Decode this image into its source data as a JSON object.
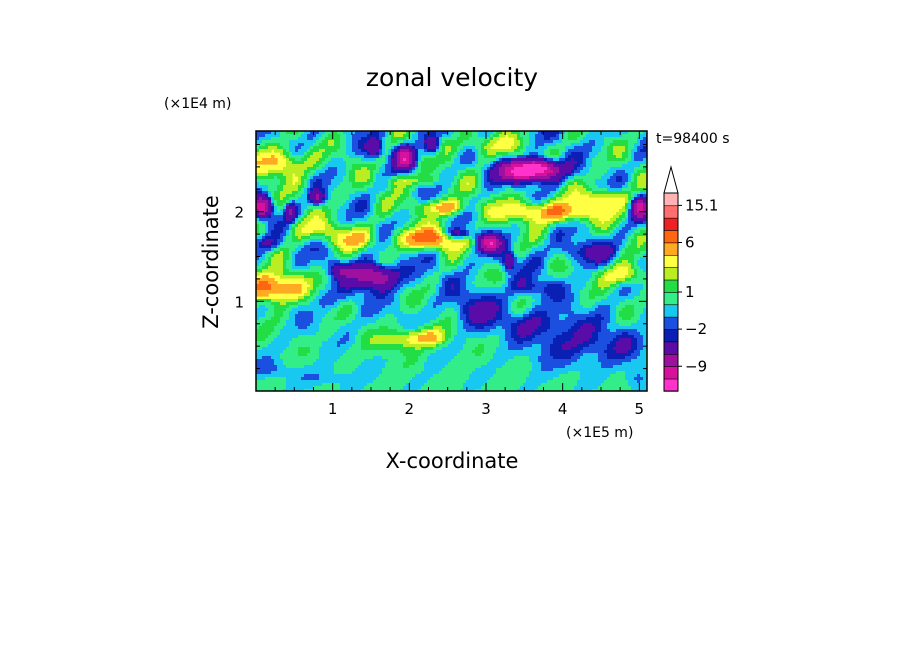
{
  "chart_data": {
    "type": "heatmap",
    "title": "zonal velocity",
    "xlabel": "X-coordinate",
    "ylabel": "Z-coordinate",
    "x_unit": "(×1E5 m)",
    "y_unit": "(×1E4 m)",
    "time_label": "t=98400 s",
    "xlim": [
      0,
      5.1
    ],
    "ylim": [
      0,
      2.9
    ],
    "x_ticks": [
      1,
      2,
      3,
      4,
      5
    ],
    "y_ticks": [
      1,
      2
    ],
    "colorbar": {
      "labels": [
        "15.1",
        "6",
        "1",
        "−2",
        "−9"
      ],
      "label_values": [
        15.1,
        6,
        1,
        -2,
        -9
      ],
      "levels": [
        -15,
        -12,
        -9,
        -6,
        -3,
        -2,
        -1,
        0,
        1,
        2,
        3,
        4.5,
        6,
        9,
        12,
        15.1
      ],
      "colors": [
        "#ff33cc",
        "#d6119c",
        "#a0109f",
        "#5a0ca8",
        "#0a1fb3",
        "#1a4fe0",
        "#18c8f0",
        "#33ee88",
        "#22dd44",
        "#bbee22",
        "#ffff44",
        "#ffaa22",
        "#ff6611",
        "#ee2222",
        "#ff6f6f",
        "#ffb3b3"
      ],
      "extend_max": true
    },
    "field_features": [
      {
        "type": "negative-core",
        "x": 3.55,
        "z": 2.45,
        "value": -9
      },
      {
        "type": "negative-core",
        "x": 1.95,
        "z": 2.6,
        "value": -6
      },
      {
        "type": "negative-core",
        "x": 0.1,
        "z": 2.05,
        "value": -6
      },
      {
        "type": "negative-core",
        "x": 1.55,
        "z": 1.3,
        "value": -5
      },
      {
        "type": "negative-core",
        "x": 3.05,
        "z": 1.65,
        "value": -6
      },
      {
        "type": "positive-core",
        "x": 0.2,
        "z": 1.15,
        "value": 6
      },
      {
        "type": "positive-core",
        "x": 2.25,
        "z": 1.7,
        "value": 6
      },
      {
        "type": "positive-core",
        "x": 3.8,
        "z": 2.0,
        "value": 5
      },
      {
        "type": "positive-core",
        "x": 2.2,
        "z": 0.6,
        "value": 4
      }
    ]
  }
}
